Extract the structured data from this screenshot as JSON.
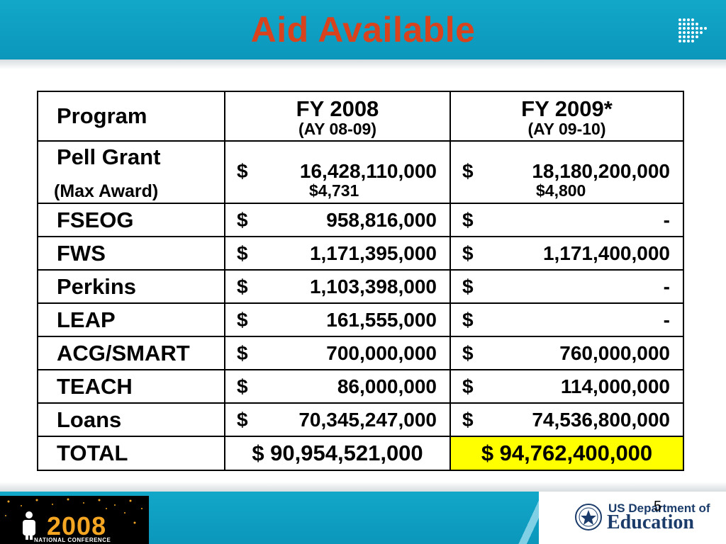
{
  "slide": {
    "title": "Aid Available",
    "page_number": "5"
  },
  "table": {
    "header": {
      "program": "Program",
      "fy2008": "FY 2008",
      "ay2008": "(AY 08-09)",
      "fy2009": "FY 2009*",
      "ay2009": "(AY 09-10)"
    },
    "pell": {
      "name": "Pell Grant",
      "sub": "(Max Award)",
      "fy2008_dollar": "$",
      "fy2008": "16,428,110,000",
      "fy2008_max": "$4,731",
      "fy2009_dollar": "$",
      "fy2009": "18,180,200,000",
      "fy2009_max": "$4,800"
    },
    "rows": [
      {
        "name": "FSEOG",
        "d1": "$",
        "v1": "958,816,000",
        "d2": "$",
        "v2": "-"
      },
      {
        "name": "FWS",
        "d1": "$",
        "v1": "1,171,395,000",
        "d2": "$",
        "v2": "1,171,400,000"
      },
      {
        "name": "Perkins",
        "d1": "$",
        "v1": "1,103,398,000",
        "d2": "$",
        "v2": "-"
      },
      {
        "name": "LEAP",
        "d1": "$",
        "v1": "161,555,000",
        "d2": "$",
        "v2": "-"
      },
      {
        "name": "ACG/SMART",
        "d1": "$",
        "v1": "700,000,000",
        "d2": "$",
        "v2": "760,000,000"
      },
      {
        "name": "TEACH",
        "d1": "$",
        "v1": "86,000,000",
        "d2": "$",
        "v2": "114,000,000"
      },
      {
        "name": "Loans",
        "d1": "$",
        "v1": "70,345,247,000",
        "d2": "$",
        "v2": "74,536,800,000"
      }
    ],
    "total": {
      "name": "TOTAL",
      "fy2008": "$ 90,954,521,000",
      "fy2009": "$ 94,762,400,000"
    }
  },
  "footer": {
    "conference_year": "2008",
    "conference_label": "NATIONAL CONFERENCE",
    "dept_line1": "US Department of",
    "dept_line2": "Education"
  },
  "colors": {
    "header_band": "#0b97bc",
    "title": "#d8431e",
    "highlight": "#ffff00",
    "conference_year": "#f4a623",
    "dept_text": "#1b3c6b"
  }
}
